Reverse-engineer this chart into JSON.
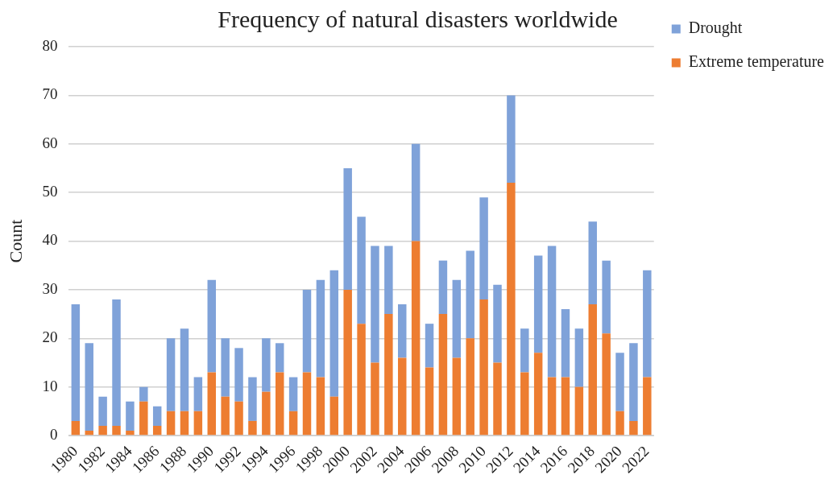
{
  "chart_data": {
    "type": "bar",
    "title": "Frequency of natural disasters worldwide",
    "ylabel": "Count",
    "categories": [
      "1980",
      null,
      "1982",
      null,
      "1984",
      null,
      "1986",
      null,
      "1988",
      null,
      "1990",
      null,
      "1992",
      null,
      "1994",
      null,
      "1996",
      null,
      "1998",
      null,
      "2000",
      null,
      "2002",
      null,
      "2004",
      null,
      "2006",
      null,
      "2008",
      null,
      "2010",
      null,
      "2012",
      null,
      "2014",
      null,
      "2016",
      null,
      "2018",
      null,
      "2020",
      null,
      "2022"
    ],
    "stacked": true,
    "series": [
      {
        "name": "Extreme temperature",
        "color": "#ed7d31",
        "values": [
          3,
          1,
          2,
          2,
          1,
          7,
          2,
          5,
          5,
          5,
          13,
          8,
          7,
          3,
          9,
          13,
          5,
          13,
          12,
          8,
          30,
          23,
          15,
          25,
          16,
          40,
          14,
          25,
          16,
          20,
          28,
          15,
          52,
          13,
          17,
          12,
          12,
          10,
          27,
          21,
          5,
          3,
          12
        ]
      },
      {
        "name": "Drought",
        "color": "#7fa2d9",
        "values": [
          24,
          18,
          6,
          26,
          6,
          3,
          4,
          15,
          17,
          7,
          19,
          12,
          11,
          9,
          11,
          6,
          7,
          17,
          20,
          26,
          25,
          22,
          24,
          14,
          11,
          20,
          9,
          11,
          16,
          18,
          21,
          16,
          18,
          9,
          20,
          27,
          14,
          12,
          17,
          15,
          12,
          16,
          22
        ]
      }
    ],
    "ylim": [
      0,
      80
    ],
    "yticks": [
      0,
      10,
      20,
      30,
      40,
      50,
      60,
      70,
      80
    ],
    "grid": "y",
    "legend": "top right"
  }
}
